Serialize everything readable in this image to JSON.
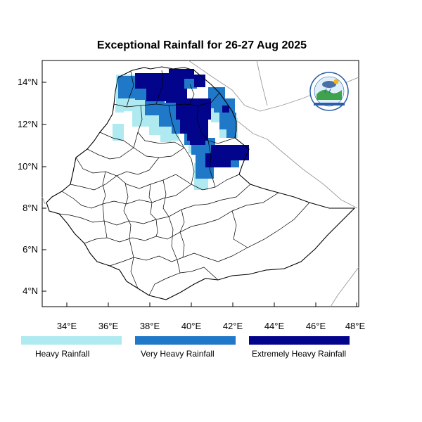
{
  "title": "Exceptional Rainfall for 26-27 Aug 2025",
  "colors": {
    "heavy": "#aeeaf0",
    "very_heavy": "#1f78c8",
    "extremely_heavy": "#02058c",
    "border": "#000000",
    "neighbor_border": "#9a9a9a"
  },
  "axes": {
    "x_ticks": [
      "34°E",
      "36°E",
      "38°E",
      "40°E",
      "42°E",
      "44°E",
      "46°E",
      "48°E"
    ],
    "y_ticks": [
      "14°N",
      "12°N",
      "10°N",
      "8°N",
      "6°N",
      "4°N"
    ]
  },
  "legend": [
    {
      "label": "Heavy Rainfall",
      "color": "#aeeaf0"
    },
    {
      "label": "Very Heavy Rainfall",
      "color": "#1f78c8"
    },
    {
      "label": "Extremely Heavy Rainfall",
      "color": "#02058c"
    }
  ],
  "logo": {
    "icon": "meteorology-agency-logo"
  }
}
